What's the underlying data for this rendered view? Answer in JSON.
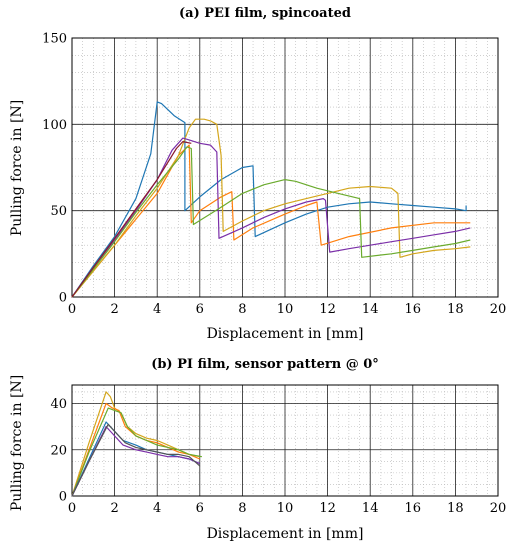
{
  "chart_data": [
    {
      "type": "line",
      "title": "(a) PEI film, spincoated",
      "xlabel": "Displacement in [mm]",
      "ylabel": "Pulling force in [N]",
      "xlim": [
        0,
        20
      ],
      "ylim": [
        0,
        150
      ],
      "xticks": [
        0,
        2,
        4,
        6,
        8,
        10,
        12,
        14,
        16,
        18,
        20
      ],
      "yticks": [
        0,
        50,
        100,
        150
      ],
      "grid": "major solid, minor dotted",
      "series": [
        {
          "color": "#1f77b4",
          "x": [
            0,
            1,
            2,
            3,
            3.7,
            4.0,
            4.2,
            4.8,
            5.3,
            5.3,
            6,
            7,
            8,
            8.5,
            8.6,
            10,
            11,
            12,
            13,
            14,
            15,
            16,
            17,
            18,
            18.5,
            18.5
          ],
          "y": [
            0,
            18,
            35,
            57,
            83,
            113,
            112,
            105,
            101,
            50,
            58,
            68,
            75,
            76,
            35,
            43,
            48,
            52,
            54,
            55,
            54,
            53,
            52,
            51,
            50,
            53
          ]
        },
        {
          "color": "#ff7f0e",
          "x": [
            0,
            1,
            2,
            3,
            4,
            5,
            5.5,
            5.6,
            6,
            7,
            7.5,
            7.6,
            8.5,
            10,
            11,
            11.5,
            11.7,
            13,
            15,
            17,
            18.5,
            18.7
          ],
          "y": [
            0,
            15,
            30,
            45,
            60,
            82,
            88,
            43,
            50,
            58,
            61,
            33,
            40,
            48,
            53,
            55,
            30,
            35,
            40,
            43,
            43,
            43
          ]
        },
        {
          "color": "#d4a61c",
          "x": [
            0,
            1,
            2,
            3,
            4,
            5,
            5.5,
            5.8,
            6.2,
            6.5,
            6.8,
            7.0,
            7.1,
            8,
            9,
            10,
            11,
            12,
            13,
            14,
            15,
            15.3,
            15.4,
            16,
            17,
            18,
            18.7
          ],
          "y": [
            0,
            15,
            30,
            47,
            63,
            82,
            98,
            103,
            103,
            102,
            100,
            82,
            38,
            44,
            50,
            54,
            57,
            60,
            63,
            64,
            63,
            60,
            23,
            25,
            27,
            28,
            29
          ]
        },
        {
          "color": "#7b2fa8",
          "x": [
            0,
            1,
            2,
            3,
            4,
            4.7,
            5.2,
            5.5,
            6,
            6.5,
            6.8,
            6.9,
            8,
            9,
            10,
            11,
            11.8,
            11.9,
            12.1,
            13,
            14,
            15,
            16,
            17,
            18,
            18.7
          ],
          "y": [
            0,
            17,
            33,
            50,
            68,
            85,
            92,
            91,
            89,
            88,
            84,
            34,
            40,
            46,
            51,
            55,
            57,
            56,
            26,
            28,
            30,
            32,
            34,
            36,
            38,
            40
          ]
        },
        {
          "color": "#6bab2e",
          "x": [
            0,
            1,
            2,
            3,
            4,
            5,
            5.4,
            5.6,
            5.7,
            7,
            8,
            9,
            10,
            10.5,
            11.5,
            12.5,
            13.5,
            13.6,
            15,
            16,
            17,
            18,
            18.7
          ],
          "y": [
            0,
            16,
            32,
            49,
            65,
            80,
            87,
            86,
            42,
            52,
            60,
            65,
            68,
            67,
            63,
            60,
            57,
            23,
            25,
            27,
            29,
            31,
            33
          ]
        },
        {
          "color": "#8b1a2c",
          "x": [
            0,
            1,
            2,
            3,
            4,
            4.5,
            4.9,
            5.2,
            5.6
          ],
          "y": [
            0,
            17,
            34,
            51,
            68,
            78,
            86,
            90,
            89
          ]
        }
      ]
    },
    {
      "type": "line",
      "title": "(b) PI film, sensor pattern @ 0°",
      "xlabel": "Displacement in [mm]",
      "ylabel": "Pulling force in [N]",
      "xlim": [
        0,
        20
      ],
      "ylim": [
        0,
        48
      ],
      "xticks": [
        0,
        2,
        4,
        6,
        8,
        10,
        12,
        14,
        16,
        18,
        20
      ],
      "yticks": [
        0,
        20,
        40
      ],
      "grid": "major solid, minor dotted",
      "series": [
        {
          "color": "#d4a61c",
          "x": [
            0,
            0.8,
            1.6,
            1.8,
            2.0,
            2.3,
            2.6,
            3,
            3.5,
            4,
            4.5,
            5,
            5.5,
            6.0
          ],
          "y": [
            0,
            23,
            45,
            43,
            38,
            36,
            30,
            27,
            25,
            24,
            22,
            20,
            18,
            17
          ]
        },
        {
          "color": "#ff7f0e",
          "x": [
            0,
            0.8,
            1.6,
            1.9,
            2.2,
            2.5,
            3,
            3.5,
            4,
            4.5,
            5,
            5.5,
            6.0
          ],
          "y": [
            0,
            20,
            40,
            38,
            37,
            30,
            26,
            24,
            23,
            21,
            19,
            18,
            16
          ]
        },
        {
          "color": "#6bab2e",
          "x": [
            0,
            0.8,
            1.7,
            2.0,
            2.3,
            2.6,
            3,
            3.5,
            4,
            4.5,
            5,
            5.5,
            6.1
          ],
          "y": [
            0,
            19,
            38,
            37,
            36,
            30,
            26,
            24,
            22,
            21,
            20,
            18,
            17
          ]
        },
        {
          "color": "#1f77b4",
          "x": [
            0,
            0.8,
            1.6,
            2.0,
            2.4,
            3,
            3.5,
            4,
            4.5,
            5,
            5.5,
            6.0
          ],
          "y": [
            0,
            16,
            32,
            28,
            24,
            22,
            20,
            19,
            18,
            17,
            16,
            14
          ]
        },
        {
          "color": "#7b2fa8",
          "x": [
            0,
            0.8,
            1.6,
            2.0,
            2.4,
            3,
            3.5,
            4,
            4.5,
            5,
            5.5,
            6.0
          ],
          "y": [
            0,
            15,
            30,
            26,
            22,
            20,
            19,
            18,
            17,
            17,
            16,
            14
          ]
        },
        {
          "color": "#555555",
          "x": [
            0,
            0.8,
            1.7,
            2.1,
            2.5,
            3,
            3.5,
            4,
            4.5,
            5,
            5.5,
            6.0
          ],
          "y": [
            0,
            15,
            31,
            27,
            23,
            21,
            20,
            19,
            18,
            18,
            17,
            13
          ]
        }
      ]
    }
  ]
}
